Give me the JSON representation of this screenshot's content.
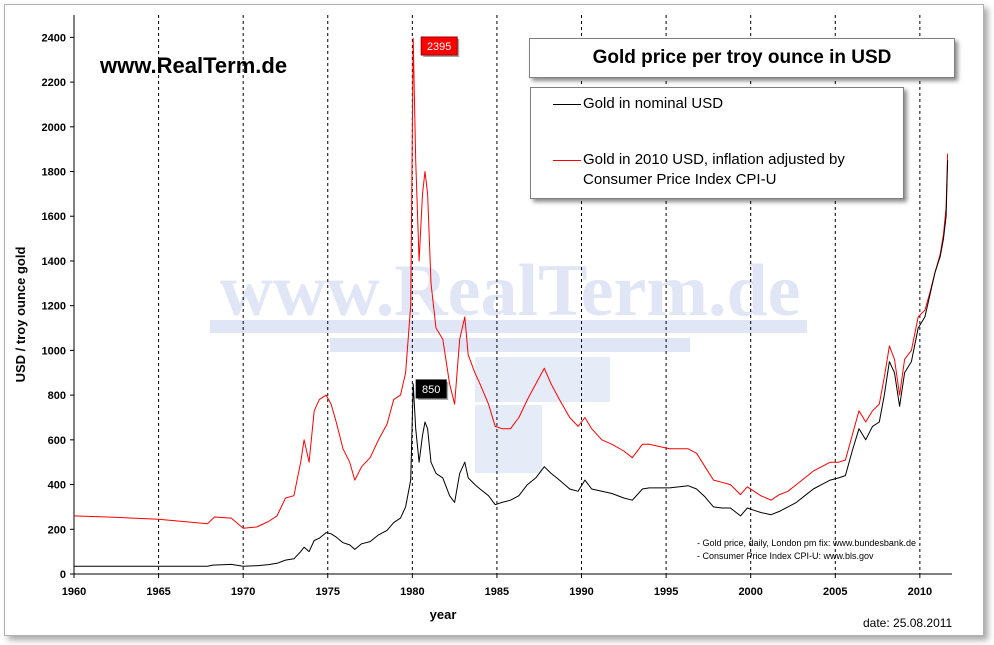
{
  "brand": "www.RealTerm.de",
  "watermark": "www.RealTerm.de",
  "sources": [
    "- Gold price, daily, London pm fix: www.bundesbank.de",
    "- Consumer Price Index CPI-U: www.bls.gov"
  ],
  "date_label": "date:",
  "date_value": "25.08.2011",
  "chart_data": {
    "type": "line",
    "title": "Gold price per troy ounce in USD",
    "xlabel": "year",
    "ylabel": "USD / troy ounce gold",
    "xlim": [
      1960,
      2011.9
    ],
    "ylim": [
      0,
      2500
    ],
    "x_ticks": [
      1960,
      1965,
      1970,
      1975,
      1980,
      1985,
      1990,
      1995,
      2000,
      2005,
      2010
    ],
    "y_ticks": [
      0,
      200,
      400,
      600,
      800,
      1000,
      1200,
      1400,
      1600,
      1800,
      2000,
      2200,
      2400
    ],
    "vertical_grid": "dashed, every 5 years",
    "horizontal_grid": false,
    "legend": "top-right",
    "annotations": [
      {
        "text": "2395",
        "x": 1980.05,
        "y": 2395,
        "series": "Gold in 2010 USD, inflation adjusted by Consumer Price Index CPI-U",
        "color": "#ff0000"
      },
      {
        "text": "850",
        "x": 1980.05,
        "y": 850,
        "series": "Gold in nominal USD",
        "color": "#000000"
      }
    ],
    "series": [
      {
        "name": "Gold in nominal USD",
        "color": "#000000",
        "points": [
          [
            1960,
            35
          ],
          [
            1967.9,
            35
          ],
          [
            1968.2,
            40
          ],
          [
            1969.3,
            43
          ],
          [
            1970,
            35
          ],
          [
            1970.8,
            37
          ],
          [
            1971.5,
            42
          ],
          [
            1972,
            48
          ],
          [
            1972.5,
            62
          ],
          [
            1973,
            68
          ],
          [
            1973.4,
            100
          ],
          [
            1973.6,
            120
          ],
          [
            1973.9,
            100
          ],
          [
            1974.2,
            150
          ],
          [
            1974.5,
            160
          ],
          [
            1974.9,
            185
          ],
          [
            1975.2,
            180
          ],
          [
            1975.5,
            165
          ],
          [
            1975.9,
            140
          ],
          [
            1976.3,
            130
          ],
          [
            1976.6,
            110
          ],
          [
            1977,
            135
          ],
          [
            1977.5,
            145
          ],
          [
            1978,
            175
          ],
          [
            1978.5,
            195
          ],
          [
            1978.9,
            230
          ],
          [
            1979.3,
            250
          ],
          [
            1979.6,
            300
          ],
          [
            1979.9,
            420
          ],
          [
            1980.05,
            850
          ],
          [
            1980.2,
            650
          ],
          [
            1980.4,
            500
          ],
          [
            1980.6,
            620
          ],
          [
            1980.75,
            680
          ],
          [
            1980.9,
            650
          ],
          [
            1981.1,
            500
          ],
          [
            1981.4,
            450
          ],
          [
            1981.8,
            430
          ],
          [
            1982.2,
            350
          ],
          [
            1982.5,
            320
          ],
          [
            1982.8,
            450
          ],
          [
            1983.1,
            500
          ],
          [
            1983.3,
            430
          ],
          [
            1983.7,
            400
          ],
          [
            1984,
            380
          ],
          [
            1984.5,
            350
          ],
          [
            1984.9,
            310
          ],
          [
            1985.3,
            320
          ],
          [
            1985.8,
            330
          ],
          [
            1986.3,
            350
          ],
          [
            1986.8,
            400
          ],
          [
            1987.3,
            430
          ],
          [
            1987.8,
            480
          ],
          [
            1988.2,
            450
          ],
          [
            1988.7,
            420
          ],
          [
            1989.3,
            380
          ],
          [
            1989.8,
            370
          ],
          [
            1990.2,
            420
          ],
          [
            1990.6,
            380
          ],
          [
            1991.2,
            370
          ],
          [
            1991.8,
            360
          ],
          [
            1992.5,
            340
          ],
          [
            1993,
            330
          ],
          [
            1993.6,
            380
          ],
          [
            1994,
            385
          ],
          [
            1994.6,
            385
          ],
          [
            1995.2,
            385
          ],
          [
            1995.8,
            390
          ],
          [
            1996.3,
            395
          ],
          [
            1996.8,
            380
          ],
          [
            1997.3,
            345
          ],
          [
            1997.8,
            300
          ],
          [
            1998.3,
            295
          ],
          [
            1998.8,
            295
          ],
          [
            1999.4,
            260
          ],
          [
            1999.8,
            295
          ],
          [
            2000.2,
            285
          ],
          [
            2000.6,
            275
          ],
          [
            2001.2,
            265
          ],
          [
            2001.7,
            280
          ],
          [
            2002.2,
            300
          ],
          [
            2002.7,
            320
          ],
          [
            2003.2,
            350
          ],
          [
            2003.7,
            380
          ],
          [
            2004.2,
            400
          ],
          [
            2004.7,
            420
          ],
          [
            2005.2,
            430
          ],
          [
            2005.6,
            440
          ],
          [
            2006,
            550
          ],
          [
            2006.4,
            650
          ],
          [
            2006.8,
            600
          ],
          [
            2007.2,
            660
          ],
          [
            2007.6,
            680
          ],
          [
            2007.9,
            800
          ],
          [
            2008.2,
            950
          ],
          [
            2008.5,
            900
          ],
          [
            2008.8,
            750
          ],
          [
            2009.1,
            900
          ],
          [
            2009.5,
            950
          ],
          [
            2009.9,
            1100
          ],
          [
            2010.3,
            1150
          ],
          [
            2010.6,
            1250
          ],
          [
            2010.9,
            1350
          ],
          [
            2011.2,
            1420
          ],
          [
            2011.4,
            1500
          ],
          [
            2011.55,
            1600
          ],
          [
            2011.64,
            1850
          ]
        ]
      },
      {
        "name": "Gold in 2010 USD, inflation adjusted by Consumer Price Index CPI-U",
        "color": "#ff0000",
        "points": [
          [
            1960,
            260
          ],
          [
            1962,
            255
          ],
          [
            1965,
            245
          ],
          [
            1967.9,
            225
          ],
          [
            1968.3,
            255
          ],
          [
            1969.3,
            250
          ],
          [
            1970,
            205
          ],
          [
            1970.8,
            210
          ],
          [
            1971.5,
            235
          ],
          [
            1972,
            260
          ],
          [
            1972.5,
            340
          ],
          [
            1973,
            350
          ],
          [
            1973.4,
            500
          ],
          [
            1973.6,
            600
          ],
          [
            1973.9,
            500
          ],
          [
            1974.2,
            730
          ],
          [
            1974.5,
            780
          ],
          [
            1974.9,
            800
          ],
          [
            1975.2,
            760
          ],
          [
            1975.5,
            680
          ],
          [
            1975.9,
            560
          ],
          [
            1976.3,
            500
          ],
          [
            1976.6,
            420
          ],
          [
            1977,
            480
          ],
          [
            1977.5,
            520
          ],
          [
            1978,
            600
          ],
          [
            1978.5,
            670
          ],
          [
            1978.9,
            780
          ],
          [
            1979.3,
            800
          ],
          [
            1979.6,
            900
          ],
          [
            1979.9,
            1200
          ],
          [
            1980.05,
            2395
          ],
          [
            1980.2,
            1850
          ],
          [
            1980.4,
            1400
          ],
          [
            1980.6,
            1700
          ],
          [
            1980.75,
            1800
          ],
          [
            1980.9,
            1700
          ],
          [
            1981.1,
            1300
          ],
          [
            1981.4,
            1100
          ],
          [
            1981.8,
            1050
          ],
          [
            1982.2,
            850
          ],
          [
            1982.5,
            760
          ],
          [
            1982.8,
            1050
          ],
          [
            1983.1,
            1150
          ],
          [
            1983.3,
            980
          ],
          [
            1983.7,
            900
          ],
          [
            1984,
            850
          ],
          [
            1984.5,
            760
          ],
          [
            1984.9,
            660
          ],
          [
            1985.3,
            650
          ],
          [
            1985.8,
            650
          ],
          [
            1986.3,
            700
          ],
          [
            1986.8,
            780
          ],
          [
            1987.3,
            850
          ],
          [
            1987.8,
            920
          ],
          [
            1988.2,
            850
          ],
          [
            1988.7,
            780
          ],
          [
            1989.3,
            700
          ],
          [
            1989.8,
            660
          ],
          [
            1990.2,
            700
          ],
          [
            1990.6,
            650
          ],
          [
            1991.2,
            600
          ],
          [
            1991.8,
            580
          ],
          [
            1992.5,
            550
          ],
          [
            1993,
            520
          ],
          [
            1993.6,
            580
          ],
          [
            1994,
            580
          ],
          [
            1994.6,
            570
          ],
          [
            1995.2,
            560
          ],
          [
            1995.8,
            560
          ],
          [
            1996.3,
            560
          ],
          [
            1996.8,
            540
          ],
          [
            1997.3,
            480
          ],
          [
            1997.8,
            420
          ],
          [
            1998.3,
            410
          ],
          [
            1998.8,
            400
          ],
          [
            1999.4,
            355
          ],
          [
            1999.8,
            390
          ],
          [
            2000.2,
            370
          ],
          [
            2000.6,
            350
          ],
          [
            2001.2,
            330
          ],
          [
            2001.7,
            355
          ],
          [
            2002.2,
            370
          ],
          [
            2002.7,
            400
          ],
          [
            2003.2,
            430
          ],
          [
            2003.7,
            460
          ],
          [
            2004.2,
            480
          ],
          [
            2004.7,
            500
          ],
          [
            2005.2,
            500
          ],
          [
            2005.6,
            510
          ],
          [
            2006,
            620
          ],
          [
            2006.4,
            730
          ],
          [
            2006.8,
            680
          ],
          [
            2007.2,
            730
          ],
          [
            2007.6,
            760
          ],
          [
            2007.9,
            880
          ],
          [
            2008.2,
            1020
          ],
          [
            2008.5,
            960
          ],
          [
            2008.8,
            800
          ],
          [
            2009.1,
            960
          ],
          [
            2009.5,
            1000
          ],
          [
            2009.9,
            1150
          ],
          [
            2010.3,
            1180
          ],
          [
            2010.6,
            1260
          ],
          [
            2010.9,
            1350
          ],
          [
            2011.2,
            1430
          ],
          [
            2011.4,
            1520
          ],
          [
            2011.55,
            1640
          ],
          [
            2011.64,
            1880
          ]
        ]
      }
    ]
  },
  "colors": {
    "nominal": "#000000",
    "inflation_adjusted": "#ff0000",
    "watermark": "#c8d2f0",
    "annotation_red_bg": "#ff0000",
    "annotation_black_bg": "#000000"
  }
}
